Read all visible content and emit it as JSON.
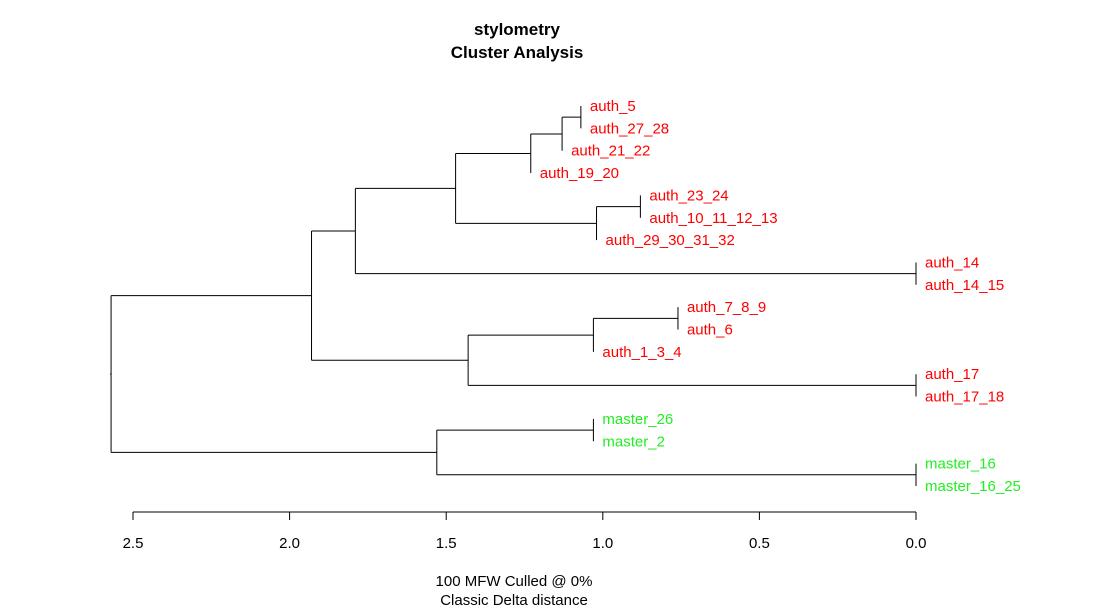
{
  "chart_data": {
    "type": "dendrogram",
    "title_lines": [
      "stylometry",
      "Cluster Analysis"
    ],
    "caption_lines": [
      "100 MFW  Culled @ 0%",
      "Classic Delta distance"
    ],
    "x_axis": {
      "lim": [
        2.6,
        0.0
      ],
      "ticks": [
        2.5,
        2.0,
        1.5,
        1.0,
        0.5,
        0.0
      ],
      "tick_labels": [
        "2.5",
        "2.0",
        "1.5",
        "1.0",
        "0.5",
        "0.0"
      ]
    },
    "colors": {
      "auth": "#ff0000",
      "master": "#22ee22",
      "line": "#000000"
    },
    "leaves": [
      {
        "label": "auth_5",
        "group": "auth"
      },
      {
        "label": "auth_27_28",
        "group": "auth"
      },
      {
        "label": "auth_21_22",
        "group": "auth"
      },
      {
        "label": "auth_19_20",
        "group": "auth"
      },
      {
        "label": "auth_23_24",
        "group": "auth"
      },
      {
        "label": "auth_10_11_12_13",
        "group": "auth"
      },
      {
        "label": "auth_29_30_31_32",
        "group": "auth"
      },
      {
        "label": "auth_14",
        "group": "auth"
      },
      {
        "label": "auth_14_15",
        "group": "auth"
      },
      {
        "label": "auth_7_8_9",
        "group": "auth"
      },
      {
        "label": "auth_6",
        "group": "auth"
      },
      {
        "label": "auth_1_3_4",
        "group": "auth"
      },
      {
        "label": "auth_17",
        "group": "auth"
      },
      {
        "label": "auth_17_18",
        "group": "auth"
      },
      {
        "label": "master_26",
        "group": "master"
      },
      {
        "label": "master_2",
        "group": "master"
      },
      {
        "label": "master_16",
        "group": "master"
      },
      {
        "label": "master_16_25",
        "group": "master"
      }
    ],
    "leaf_heights": [
      1.07,
      1.07,
      1.13,
      1.23,
      0.88,
      0.88,
      1.02,
      0.0,
      0.0,
      0.76,
      0.76,
      1.03,
      0.0,
      0.0,
      1.03,
      1.03,
      0.0,
      0.0
    ],
    "merges": [
      {
        "left": "L0",
        "right": "L1",
        "height": 1.07
      },
      {
        "left": "N0",
        "right": "L2",
        "height": 1.13
      },
      {
        "left": "N1",
        "right": "L3",
        "height": 1.23
      },
      {
        "left": "L4",
        "right": "L5",
        "height": 0.88
      },
      {
        "left": "N3",
        "right": "L6",
        "height": 1.02
      },
      {
        "left": "N2",
        "right": "N4",
        "height": 1.47
      },
      {
        "left": "L7",
        "right": "L8",
        "height": 0.0
      },
      {
        "left": "N5",
        "right": "N6",
        "height": 1.79
      },
      {
        "left": "L9",
        "right": "L10",
        "height": 0.76
      },
      {
        "left": "N8",
        "right": "L11",
        "height": 1.03
      },
      {
        "left": "L12",
        "right": "L13",
        "height": 0.0
      },
      {
        "left": "N9",
        "right": "N10",
        "height": 1.43
      },
      {
        "left": "N7",
        "right": "N11",
        "height": 1.93
      },
      {
        "left": "L14",
        "right": "L15",
        "height": 1.03
      },
      {
        "left": "L16",
        "right": "L17",
        "height": 0.0
      },
      {
        "left": "N13",
        "right": "N14",
        "height": 1.53
      },
      {
        "left": "N12",
        "right": "N15",
        "height": 2.57
      }
    ]
  }
}
